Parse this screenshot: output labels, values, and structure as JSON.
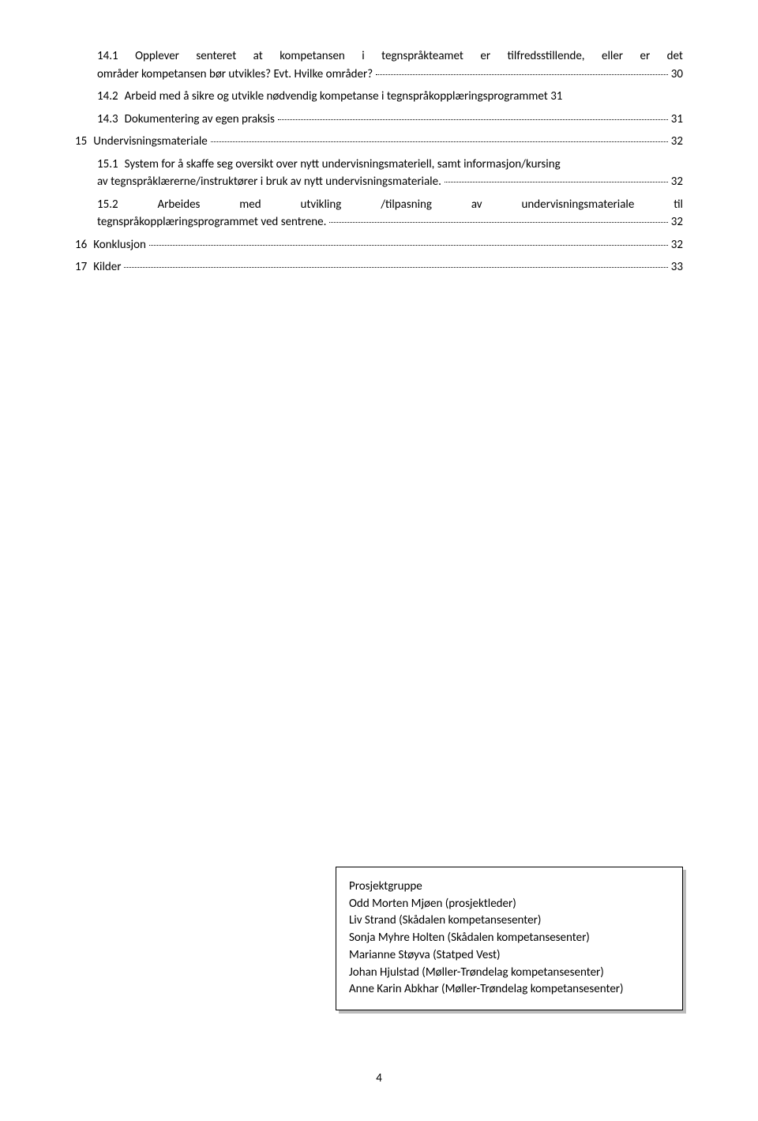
{
  "toc": [
    {
      "indent": 1,
      "num": "14.1",
      "lines": [
        "Opplever senteret at kompetansen i tegnspråkteamet er tilfredsstillende, eller er det",
        "områder kompetansen bør utvikles? Evt. Hvilke områder?"
      ],
      "pg": "30",
      "justifyFirst": true
    },
    {
      "indent": 1,
      "num": "14.2",
      "lines": [
        "Arbeid med å sikre og utvikle nødvendig kompetanse i tegnspråkopplæringsprogrammet 31"
      ],
      "nodots": true
    },
    {
      "indent": 1,
      "num": "14.3",
      "lines": [
        "Dokumentering av egen praksis"
      ],
      "pg": "31"
    },
    {
      "indent": 0,
      "num": "15",
      "lines": [
        "Undervisningsmateriale"
      ],
      "pg": "32"
    },
    {
      "indent": 1,
      "num": "15.1",
      "lines": [
        "System for å skaffe seg oversikt over nytt undervisningsmateriell, samt informasjon/kursing",
        "av tegnspråklærerne/instruktører i bruk av nytt undervisningsmateriale."
      ],
      "pg": "32"
    },
    {
      "indent": 1,
      "num": "15.2",
      "justifyAll": true,
      "lines": [
        "Arbeides med utvikling /tilpasning av undervisningsmateriale til",
        "tegnspråkopplæringsprogrammet ved sentrene."
      ],
      "pg": "32"
    },
    {
      "indent": 0,
      "num": "16",
      "lines": [
        "Konklusjon"
      ],
      "pg": "32"
    },
    {
      "indent": 0,
      "num": "17",
      "lines": [
        "Kilder"
      ],
      "pg": "33"
    }
  ],
  "box": {
    "title": "Prosjektgruppe",
    "lines": [
      "Odd Morten Mjøen (prosjektleder)",
      "Liv Strand (Skådalen kompetansesenter)",
      "Sonja Myhre Holten (Skådalen kompetansesenter)",
      "Marianne Støyva (Statped Vest)",
      "Johan Hjulstad (Møller-Trøndelag kompetansesenter)",
      "Anne Karin Abkhar (Møller-Trøndelag kompetansesenter)"
    ]
  },
  "pageNumber": "4"
}
